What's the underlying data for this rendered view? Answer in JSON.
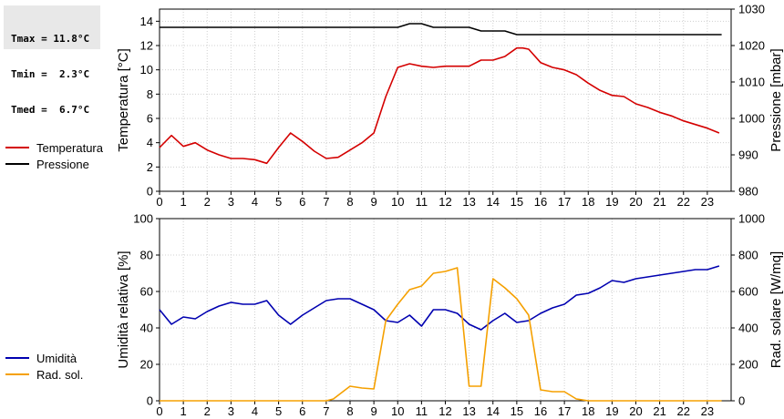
{
  "stats": {
    "tmax": "Tmax = 11.8°C",
    "tmin": "Tmin =  2.3°C",
    "tmed": "Tmed =  6.7°C"
  },
  "legend": {
    "top": [
      {
        "label": "Temperatura",
        "color": "#d40000"
      },
      {
        "label": "Pressione",
        "color": "#000000"
      }
    ],
    "bottom": [
      {
        "label": "Umidità",
        "color": "#0000b0"
      },
      {
        "label": "Rad. sol.",
        "color": "#f5a000"
      }
    ]
  },
  "chart_data": [
    {
      "type": "line",
      "ylabel": "Temperatura [°C]",
      "y2label": "Pressione [mbar]",
      "xlim": [
        0,
        24
      ],
      "ylim": [
        0,
        15
      ],
      "y2lim": [
        980,
        1030
      ],
      "xticks": [
        0,
        1,
        2,
        3,
        4,
        5,
        6,
        7,
        8,
        9,
        10,
        11,
        12,
        13,
        14,
        15,
        16,
        17,
        18,
        19,
        20,
        21,
        22,
        23
      ],
      "yticks": [
        0,
        2,
        4,
        6,
        8,
        10,
        12,
        14
      ],
      "y2ticks": [
        980,
        990,
        1000,
        1010,
        1020,
        1030
      ],
      "grid": true,
      "series": [
        {
          "name": "Temperatura",
          "axis": "left",
          "color": "#d40000",
          "x": [
            0,
            0.5,
            1,
            1.5,
            2,
            2.5,
            3,
            3.5,
            4,
            4.5,
            5,
            5.5,
            6,
            6.5,
            7,
            7.5,
            8,
            8.5,
            9,
            9.5,
            10,
            10.5,
            11,
            11.5,
            12,
            12.5,
            13,
            13.5,
            14,
            14.5,
            15,
            15.25,
            15.5,
            16,
            16.5,
            17,
            17.5,
            18,
            18.5,
            19,
            19.5,
            20,
            20.5,
            21,
            21.5,
            22,
            22.5,
            23,
            23.5
          ],
          "y": [
            3.6,
            4.6,
            3.7,
            4.0,
            3.4,
            3.0,
            2.7,
            2.7,
            2.6,
            2.3,
            3.6,
            4.8,
            4.1,
            3.3,
            2.7,
            2.8,
            3.4,
            4.0,
            4.8,
            7.8,
            10.2,
            10.5,
            10.3,
            10.2,
            10.3,
            10.3,
            10.3,
            10.8,
            10.8,
            11.1,
            11.8,
            11.8,
            11.7,
            10.6,
            10.2,
            10.0,
            9.6,
            8.9,
            8.3,
            7.9,
            7.8,
            7.2,
            6.9,
            6.5,
            6.2,
            5.8,
            5.5,
            5.2,
            4.8
          ]
        },
        {
          "name": "Pressione",
          "axis": "right",
          "color": "#000000",
          "x": [
            0,
            1,
            2,
            3,
            4,
            5,
            6,
            7,
            8,
            9,
            10,
            10.5,
            11,
            11.5,
            12,
            13,
            13.5,
            14,
            14.5,
            15,
            16,
            17,
            18,
            19,
            20,
            21,
            22,
            23,
            23.6
          ],
          "y": [
            1025,
            1025,
            1025,
            1025,
            1025,
            1025,
            1025,
            1025,
            1025,
            1025,
            1025,
            1026,
            1026,
            1025,
            1025,
            1025,
            1024,
            1024,
            1024,
            1023,
            1023,
            1023,
            1023,
            1023,
            1023,
            1023,
            1023,
            1023,
            1023
          ]
        }
      ]
    },
    {
      "type": "line",
      "ylabel": "Umidità relativa [%]",
      "y2label": "Rad. solare [W/mq]",
      "xlim": [
        0,
        24
      ],
      "ylim": [
        0,
        100
      ],
      "y2lim": [
        0,
        1000
      ],
      "xticks": [
        0,
        1,
        2,
        3,
        4,
        5,
        6,
        7,
        8,
        9,
        10,
        11,
        12,
        13,
        14,
        15,
        16,
        17,
        18,
        19,
        20,
        21,
        22,
        23
      ],
      "yticks": [
        0,
        20,
        40,
        60,
        80,
        100
      ],
      "y2ticks": [
        0,
        200,
        400,
        600,
        800,
        1000
      ],
      "grid": true,
      "series": [
        {
          "name": "Umidità",
          "axis": "left",
          "color": "#0000b0",
          "x": [
            0,
            0.5,
            1,
            1.5,
            2,
            2.5,
            3,
            3.5,
            4,
            4.5,
            5,
            5.5,
            6,
            6.5,
            7,
            7.5,
            8,
            8.5,
            9,
            9.5,
            10,
            10.5,
            11,
            11.5,
            12,
            12.5,
            13,
            13.5,
            14,
            14.5,
            15,
            15.5,
            16,
            16.5,
            17,
            17.5,
            18,
            18.5,
            19,
            19.5,
            20,
            20.5,
            21,
            21.5,
            22,
            22.5,
            23,
            23.5
          ],
          "y": [
            50,
            42,
            46,
            45,
            49,
            52,
            54,
            53,
            53,
            55,
            47,
            42,
            47,
            51,
            55,
            56,
            56,
            53,
            50,
            44,
            43,
            47,
            41,
            50,
            50,
            48,
            42,
            39,
            44,
            48,
            43,
            44,
            48,
            51,
            53,
            58,
            59,
            62,
            66,
            65,
            67,
            68,
            69,
            70,
            71,
            72,
            72,
            74
          ]
        },
        {
          "name": "Rad. sol.",
          "axis": "right",
          "color": "#f5a000",
          "x": [
            0,
            1,
            2,
            3,
            4,
            5,
            6,
            7,
            7.3,
            7.6,
            8,
            8.5,
            9,
            9.5,
            10,
            10.5,
            11,
            11.5,
            12,
            12.5,
            13,
            13.5,
            14,
            14.5,
            15,
            15.5,
            16,
            16.5,
            17,
            17.5,
            18,
            19,
            20,
            21,
            22,
            23,
            23.6
          ],
          "y": [
            0,
            0,
            0,
            0,
            0,
            0,
            0,
            0,
            10,
            40,
            80,
            70,
            65,
            440,
            530,
            610,
            630,
            700,
            710,
            730,
            80,
            80,
            670,
            620,
            560,
            470,
            60,
            50,
            50,
            10,
            0,
            0,
            0,
            0,
            0,
            0,
            0
          ]
        }
      ]
    }
  ]
}
